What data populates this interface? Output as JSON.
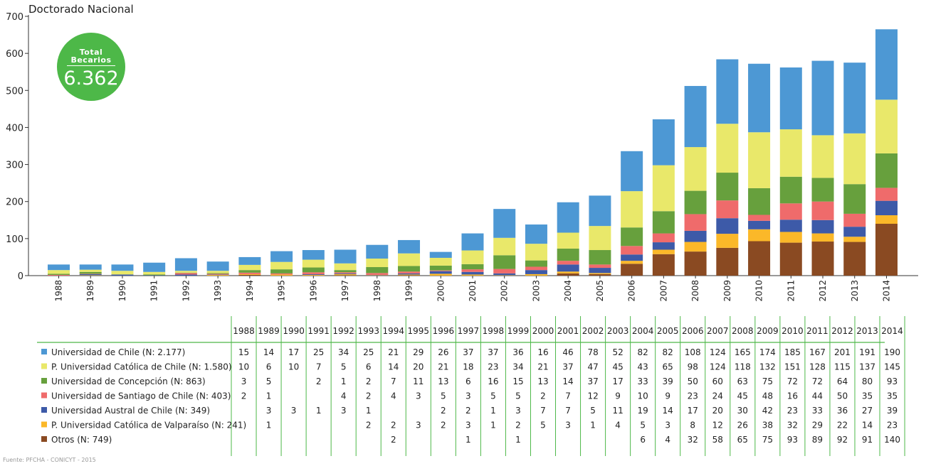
{
  "title": "Doctorado Nacional",
  "badge": {
    "line1": "Total",
    "line2": "Becarios",
    "value": "6.362",
    "color": "#4db848"
  },
  "source": "Fuente: PFCHA - CONICYT - 2015",
  "chart_data": {
    "type": "bar",
    "stacked": true,
    "title": "Doctorado Nacional",
    "ylim": [
      0,
      700
    ],
    "yticks": [
      0,
      100,
      200,
      300,
      400,
      500,
      600,
      700
    ],
    "grid": false,
    "categories": [
      "1988",
      "1989",
      "1990",
      "1991",
      "1992",
      "1993",
      "1994",
      "1995",
      "1996",
      "1997",
      "1998",
      "1999",
      "2000",
      "2001",
      "2002",
      "2003",
      "2004",
      "2005",
      "2006",
      "2007",
      "2008",
      "2009",
      "2010",
      "2011",
      "2012",
      "2013",
      "2014"
    ],
    "series": [
      {
        "name": "Otros (N: 749)",
        "color": "#8a4a22",
        "values": [
          null,
          null,
          null,
          null,
          null,
          null,
          2,
          null,
          null,
          1,
          null,
          1,
          null,
          null,
          null,
          null,
          6,
          4,
          32,
          58,
          65,
          75,
          93,
          89,
          92,
          91,
          140
        ],
        "table_values": [
          "",
          "",
          "",
          "",
          "",
          "",
          "2",
          "",
          "",
          "1",
          "",
          "1",
          "",
          "",
          "",
          "",
          "6",
          "4",
          "32",
          "58",
          "65",
          "75",
          "93",
          "89",
          "92",
          "91",
          "140"
        ]
      },
      {
        "name": "P. Universidad Católica de Valparaíso (N: 241)",
        "color": "#fbb829",
        "values": [
          null,
          1,
          null,
          null,
          null,
          2,
          2,
          3,
          2,
          3,
          1,
          2,
          5,
          3,
          1,
          4,
          5,
          3,
          8,
          12,
          26,
          38,
          32,
          29,
          22,
          14,
          23
        ],
        "table_values": [
          "",
          "1",
          "",
          "",
          "",
          "2",
          "2",
          "3",
          "2",
          "3",
          "1",
          "2",
          "5",
          "3",
          "1",
          "4",
          "5",
          "3",
          "8",
          "12",
          "26",
          "38",
          "32",
          "29",
          "22",
          "14",
          "23"
        ]
      },
      {
        "name": "Universidad Austral de Chile (N: 349)",
        "color": "#3d5aa8",
        "values": [
          null,
          3,
          3,
          1,
          3,
          1,
          null,
          null,
          2,
          2,
          1,
          3,
          7,
          7,
          5,
          11,
          19,
          14,
          17,
          20,
          30,
          42,
          23,
          33,
          36,
          27,
          39
        ],
        "table_values": [
          "",
          "3",
          "3",
          "1",
          "3",
          "1",
          "",
          "",
          "2",
          "2",
          "1",
          "3",
          "7",
          "7",
          "5",
          "11",
          "19",
          "14",
          "17",
          "20",
          "30",
          "42",
          "23",
          "33",
          "36",
          "27",
          "39"
        ]
      },
      {
        "name": "Universidad de Santiago de Chile (N: 403)",
        "color": "#ef6b6b",
        "values": [
          2,
          1,
          null,
          null,
          4,
          2,
          4,
          3,
          5,
          3,
          5,
          5,
          2,
          7,
          12,
          9,
          10,
          9,
          23,
          24,
          45,
          48,
          16,
          44,
          50,
          35,
          35
        ],
        "table_values": [
          "2",
          "1",
          "",
          "",
          "4",
          "2",
          "4",
          "3",
          "5",
          "3",
          "5",
          "5",
          "2",
          "7",
          "12",
          "9",
          "10",
          "9",
          "23",
          "24",
          "45",
          "48",
          "16",
          "44",
          "50",
          "35",
          "35"
        ]
      },
      {
        "name": "Universidad de Concepción (N: 863)",
        "color": "#67a03d",
        "values": [
          3,
          5,
          null,
          2,
          1,
          2,
          7,
          11,
          13,
          6,
          16,
          15,
          13,
          14,
          37,
          17,
          33,
          39,
          50,
          60,
          63,
          75,
          72,
          72,
          64,
          80,
          93
        ],
        "table_values": [
          "3",
          "5",
          "",
          "2",
          "1",
          "2",
          "7",
          "11",
          "13",
          "6",
          "16",
          "15",
          "13",
          "14",
          "37",
          "17",
          "33",
          "39",
          "50",
          "60",
          "63",
          "75",
          "72",
          "72",
          "64",
          "80",
          "93"
        ]
      },
      {
        "name": "P. Universidad Católica de Chile (N: 1.580)",
        "color": "#e9e86a",
        "values": [
          10,
          6,
          10,
          7,
          5,
          6,
          14,
          20,
          21,
          18,
          23,
          34,
          21,
          37,
          47,
          45,
          43,
          65,
          98,
          124,
          118,
          132,
          151,
          128,
          115,
          137,
          145
        ],
        "table_values": [
          "10",
          "6",
          "10",
          "7",
          "5",
          "6",
          "14",
          "20",
          "21",
          "18",
          "23",
          "34",
          "21",
          "37",
          "47",
          "45",
          "43",
          "65",
          "98",
          "124",
          "118",
          "132",
          "151",
          "128",
          "115",
          "137",
          "145"
        ]
      },
      {
        "name": "Universidad de Chile (N: 2.177)",
        "color": "#4d98d4",
        "values": [
          15,
          14,
          17,
          25,
          34,
          25,
          21,
          29,
          26,
          37,
          37,
          36,
          16,
          46,
          78,
          52,
          82,
          82,
          108,
          124,
          165,
          174,
          185,
          167,
          201,
          191,
          190
        ],
        "table_values": [
          "15",
          "14",
          "17",
          "25",
          "34",
          "25",
          "21",
          "29",
          "26",
          "37",
          "37",
          "36",
          "16",
          "46",
          "78",
          "52",
          "82",
          "82",
          "108",
          "124",
          "165",
          "174",
          "185",
          "167",
          "201",
          "191",
          "190"
        ]
      }
    ],
    "legend_order": [
      6,
      5,
      4,
      3,
      2,
      1,
      0
    ],
    "table": true
  }
}
